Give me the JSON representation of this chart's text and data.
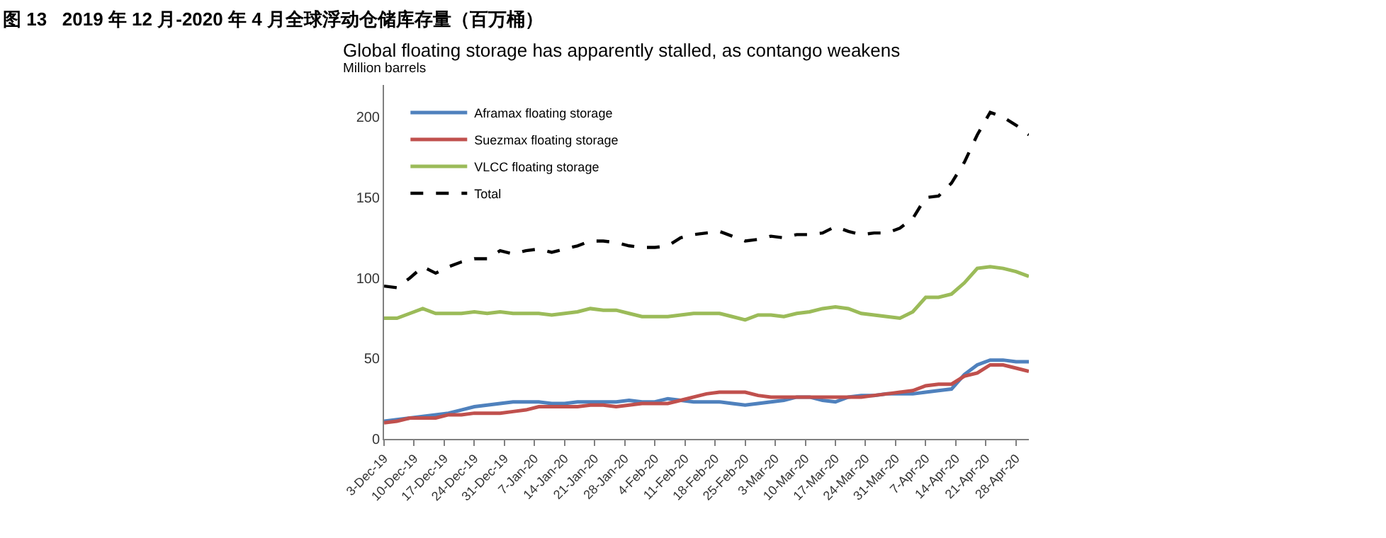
{
  "chart_data": {
    "type": "line",
    "title": "图 13   2019 年 12 月-2020 年 4 月全球浮动仓储库存量（百万桶）",
    "subtitle": "Global floating storage has apparently stalled, as contango weakens",
    "ylabel": "Million barrels",
    "x": [
      "2019-12-03",
      "2019-12-06",
      "2019-12-09",
      "2019-12-12",
      "2019-12-15",
      "2019-12-18",
      "2019-12-21",
      "2019-12-24",
      "2019-12-27",
      "2019-12-30",
      "2020-01-02",
      "2020-01-05",
      "2020-01-08",
      "2020-01-11",
      "2020-01-14",
      "2020-01-17",
      "2020-01-20",
      "2020-01-23",
      "2020-01-26",
      "2020-01-29",
      "2020-02-01",
      "2020-02-04",
      "2020-02-07",
      "2020-02-10",
      "2020-02-13",
      "2020-02-16",
      "2020-02-19",
      "2020-02-22",
      "2020-02-25",
      "2020-02-28",
      "2020-03-02",
      "2020-03-05",
      "2020-03-08",
      "2020-03-11",
      "2020-03-14",
      "2020-03-17",
      "2020-03-20",
      "2020-03-23",
      "2020-03-26",
      "2020-03-29",
      "2020-04-01",
      "2020-04-04",
      "2020-04-07",
      "2020-04-10",
      "2020-04-13",
      "2020-04-16",
      "2020-04-19",
      "2020-04-22",
      "2020-04-25",
      "2020-04-28",
      "2020-05-01"
    ],
    "series": [
      {
        "name": "Aframax floating storage",
        "color": "#4f81bd",
        "line_style": "solid",
        "values": [
          11,
          12,
          13,
          14,
          15,
          16,
          18,
          20,
          21,
          22,
          23,
          23,
          23,
          22,
          22,
          23,
          23,
          23,
          23,
          24,
          23,
          23,
          25,
          24,
          23,
          23,
          23,
          22,
          21,
          22,
          23,
          24,
          26,
          26,
          24,
          23,
          26,
          27,
          27,
          28,
          28,
          28,
          29,
          30,
          31,
          40,
          46,
          49,
          49,
          48,
          48
        ]
      },
      {
        "name": "Suezmax floating storage",
        "color": "#c0504d",
        "line_style": "solid",
        "values": [
          10,
          11,
          13,
          13,
          13,
          15,
          15,
          16,
          16,
          16,
          17,
          18,
          20,
          20,
          20,
          20,
          21,
          21,
          20,
          21,
          22,
          22,
          22,
          24,
          26,
          28,
          29,
          29,
          29,
          27,
          26,
          26,
          26,
          26,
          26,
          26,
          26,
          26,
          27,
          28,
          29,
          30,
          33,
          34,
          34,
          39,
          41,
          46,
          46,
          44,
          42
        ]
      },
      {
        "name": "VLCC floating storage",
        "color": "#9bbb59",
        "line_style": "solid",
        "values": [
          75,
          75,
          78,
          81,
          78,
          78,
          78,
          79,
          78,
          79,
          78,
          78,
          78,
          77,
          78,
          79,
          81,
          80,
          80,
          78,
          76,
          76,
          76,
          77,
          78,
          78,
          78,
          76,
          74,
          77,
          77,
          76,
          78,
          79,
          81,
          82,
          81,
          78,
          77,
          76,
          75,
          79,
          88,
          88,
          90,
          97,
          106,
          107,
          106,
          104,
          101
        ]
      },
      {
        "name": "Total",
        "color": "#000000",
        "line_style": "dashed",
        "values": [
          95,
          94,
          100,
          107,
          103,
          107,
          110,
          112,
          112,
          117,
          115,
          117,
          118,
          116,
          118,
          120,
          123,
          123,
          122,
          120,
          119,
          119,
          120,
          125,
          127,
          128,
          129,
          126,
          123,
          124,
          126,
          125,
          127,
          127,
          128,
          132,
          129,
          127,
          128,
          128,
          131,
          137,
          150,
          151,
          159,
          172,
          189,
          203,
          200,
          195,
          189
        ]
      }
    ],
    "xlim": [
      "2019-12-03",
      "2020-05-01"
    ],
    "xticks": [
      {
        "value": "2019-12-03",
        "label": "3-Dec-19"
      },
      {
        "value": "2019-12-10",
        "label": "10-Dec-19"
      },
      {
        "value": "2019-12-17",
        "label": "17-Dec-19"
      },
      {
        "value": "2019-12-24",
        "label": "24-Dec-19"
      },
      {
        "value": "2019-12-31",
        "label": "31-Dec-19"
      },
      {
        "value": "2020-01-07",
        "label": "7-Jan-20"
      },
      {
        "value": "2020-01-14",
        "label": "14-Jan-20"
      },
      {
        "value": "2020-01-21",
        "label": "21-Jan-20"
      },
      {
        "value": "2020-01-28",
        "label": "28-Jan-20"
      },
      {
        "value": "2020-02-04",
        "label": "4-Feb-20"
      },
      {
        "value": "2020-02-11",
        "label": "11-Feb-20"
      },
      {
        "value": "2020-02-18",
        "label": "18-Feb-20"
      },
      {
        "value": "2020-02-25",
        "label": "25-Feb-20"
      },
      {
        "value": "2020-03-03",
        "label": "3-Mar-20"
      },
      {
        "value": "2020-03-10",
        "label": "10-Mar-20"
      },
      {
        "value": "2020-03-17",
        "label": "17-Mar-20"
      },
      {
        "value": "2020-03-24",
        "label": "24-Mar-20"
      },
      {
        "value": "2020-03-31",
        "label": "31-Mar-20"
      },
      {
        "value": "2020-04-07",
        "label": "7-Apr-20"
      },
      {
        "value": "2020-04-14",
        "label": "14-Apr-20"
      },
      {
        "value": "2020-04-21",
        "label": "21-Apr-20"
      },
      {
        "value": "2020-04-28",
        "label": "28-Apr-20"
      }
    ],
    "ylim": [
      0,
      220
    ],
    "yticks": [
      0,
      50,
      100,
      150,
      200
    ],
    "legend": "top left",
    "marker": "none"
  }
}
